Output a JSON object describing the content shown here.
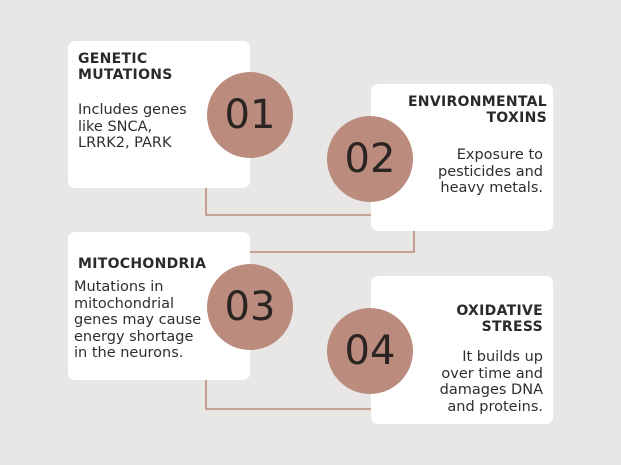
{
  "colors": {
    "background": "#e8e7e6",
    "card": "#ffffff",
    "badge": "#bb8b7d",
    "connector": "#bb8b7d"
  },
  "steps": [
    {
      "number": "01",
      "title_lines": [
        "GENETIC",
        "MUTATIONS"
      ],
      "body_lines": [
        "Includes genes",
        "like SNCA,",
        "LRRK2, PARK"
      ]
    },
    {
      "number": "02",
      "title_lines": [
        "ENVIRONMENTAL",
        "TOXINS"
      ],
      "body_lines": [
        "Exposure to",
        "pesticides and",
        "heavy metals."
      ]
    },
    {
      "number": "03",
      "title_lines": [
        "MITOCHONDRIA"
      ],
      "body_lines": [
        "Mutations in",
        "mitochondrial",
        "genes may cause",
        "energy shortage",
        "in the neurons."
      ]
    },
    {
      "number": "04",
      "title_lines": [
        "OXIDATIVE",
        "STRESS"
      ],
      "body_lines": [
        "It builds up",
        "over time and",
        "damages DNA",
        "and proteins."
      ]
    }
  ]
}
